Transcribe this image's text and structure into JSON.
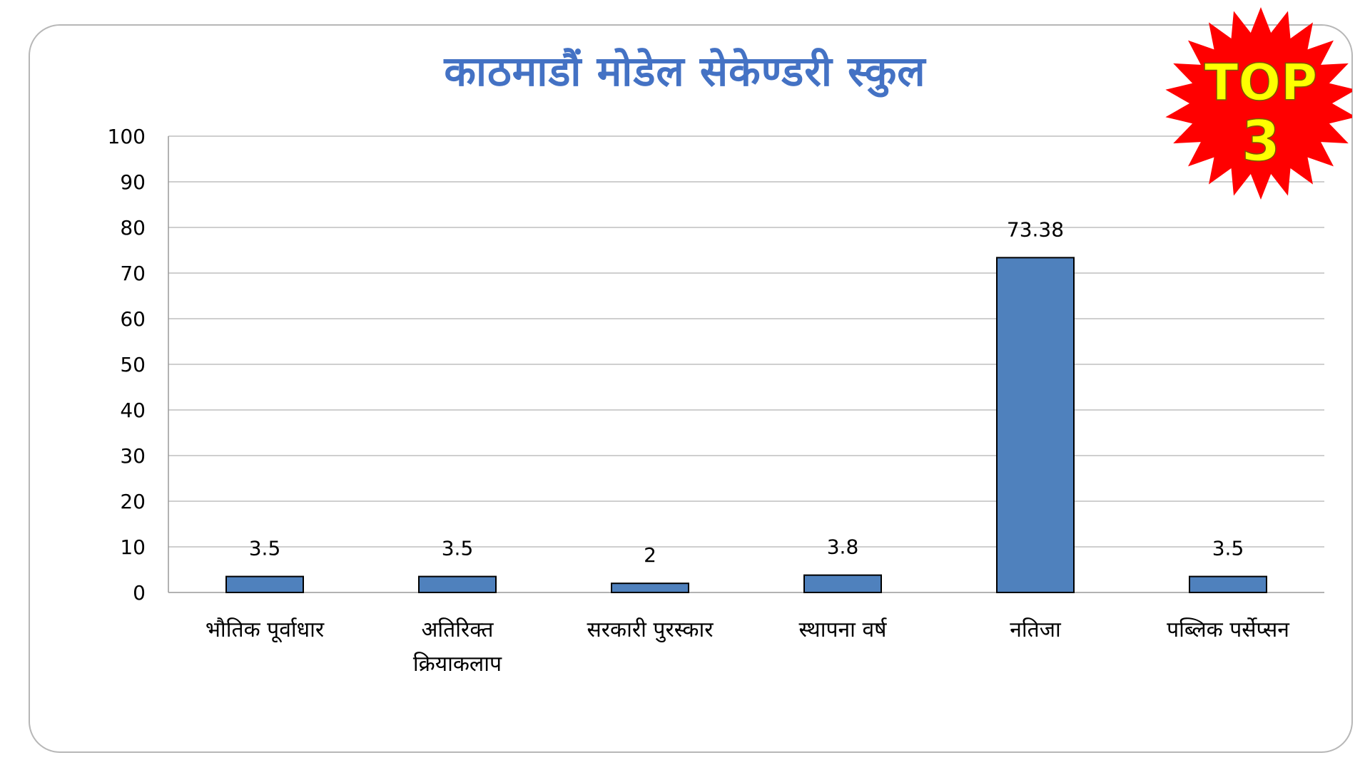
{
  "chart_data": {
    "type": "bar",
    "title": "काठमाडौं मोडेल सेकेण्डरी स्कुल",
    "categories": [
      [
        "भौतिक पूर्वाधार"
      ],
      [
        "अतिरिक्त",
        "क्रियाकलाप"
      ],
      [
        "सरकारी पुरस्कार"
      ],
      [
        "स्थापना वर्ष"
      ],
      [
        "नतिजा"
      ],
      [
        "पब्लिक पर्सेप्सन"
      ]
    ],
    "values": [
      3.5,
      3.5,
      2,
      3.8,
      73.38,
      3.5
    ],
    "data_labels": [
      "3.5",
      "3.5",
      "2",
      "3.8",
      "73.38",
      "3.5"
    ],
    "ylim": [
      0,
      100
    ],
    "yticks": [
      0,
      10,
      20,
      30,
      40,
      50,
      60,
      70,
      80,
      90,
      100
    ],
    "grid": true,
    "bar_color": "#4f81bd",
    "xlabel": "",
    "ylabel": ""
  },
  "badge": {
    "line1": "TOP",
    "line2": "3",
    "burst_color": "#ff0000",
    "text_color": "#ffff00"
  }
}
